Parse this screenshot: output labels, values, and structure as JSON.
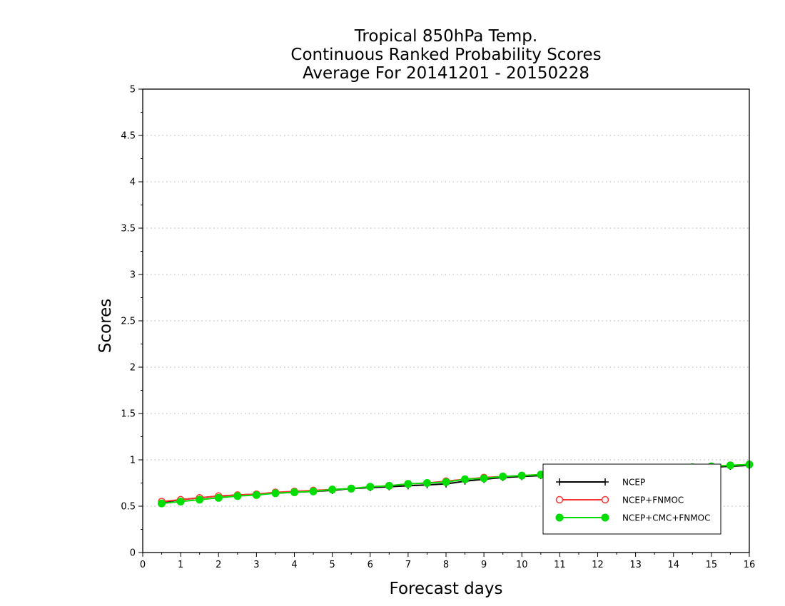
{
  "chart_data": {
    "type": "line",
    "title": [
      "Tropical 850hPa Temp.",
      "Continuous Ranked Probability Scores",
      "Average For 20141201 - 20150228"
    ],
    "xlabel": "Forecast days",
    "ylabel": "Scores",
    "xlim": [
      0,
      16
    ],
    "ylim": [
      0,
      5
    ],
    "xticks": [
      0,
      1,
      2,
      3,
      4,
      5,
      6,
      7,
      8,
      9,
      10,
      11,
      12,
      13,
      14,
      15,
      16
    ],
    "yticks": [
      0,
      0.5,
      1,
      1.5,
      2,
      2.5,
      3,
      3.5,
      4,
      4.5,
      5
    ],
    "ytick_labels": [
      "0",
      "0.5",
      "1",
      "1.5",
      "2",
      "2.5",
      "3",
      "3.5",
      "4",
      "4.5",
      "5"
    ],
    "grid": "horizontal-dotted",
    "legend_position": "bottom-right",
    "x": [
      0.5,
      1,
      1.5,
      2,
      2.5,
      3,
      3.5,
      4,
      4.5,
      5,
      5.5,
      6,
      6.5,
      7,
      7.5,
      8,
      8.5,
      9,
      9.5,
      10,
      10.5,
      11,
      11.5,
      12,
      12.5,
      13,
      13.5,
      14,
      14.5,
      15,
      15.5,
      16
    ],
    "series": [
      {
        "name": "NCEP",
        "color": "#000000",
        "marker": "plus",
        "values": [
          0.54,
          0.57,
          0.59,
          0.61,
          0.62,
          0.63,
          0.64,
          0.65,
          0.66,
          0.67,
          0.69,
          0.7,
          0.71,
          0.72,
          0.73,
          0.74,
          0.77,
          0.79,
          0.81,
          0.82,
          0.83,
          0.84,
          0.85,
          0.86,
          0.87,
          0.88,
          0.89,
          0.9,
          0.91,
          0.92,
          0.93,
          0.94
        ]
      },
      {
        "name": "NCEP+FNMOC",
        "color": "#ff3333",
        "marker": "open-circle",
        "values": [
          0.55,
          0.57,
          0.59,
          0.61,
          0.62,
          0.63,
          0.65,
          0.66,
          0.67,
          0.68,
          0.69,
          0.71,
          0.72,
          0.74,
          0.75,
          0.77,
          0.79,
          0.81,
          0.82,
          0.83,
          0.84,
          0.85,
          0.86,
          0.87,
          0.88,
          0.89,
          0.9,
          0.91,
          0.92,
          0.93,
          0.94,
          0.95
        ]
      },
      {
        "name": "NCEP+CMC+FNMOC",
        "color": "#00dd00",
        "marker": "filled-circle",
        "values": [
          0.53,
          0.55,
          0.57,
          0.59,
          0.61,
          0.62,
          0.64,
          0.65,
          0.66,
          0.68,
          0.69,
          0.71,
          0.72,
          0.74,
          0.75,
          0.76,
          0.79,
          0.8,
          0.82,
          0.83,
          0.84,
          0.85,
          0.86,
          0.87,
          0.88,
          0.89,
          0.9,
          0.91,
          0.92,
          0.93,
          0.94,
          0.95
        ]
      }
    ]
  }
}
